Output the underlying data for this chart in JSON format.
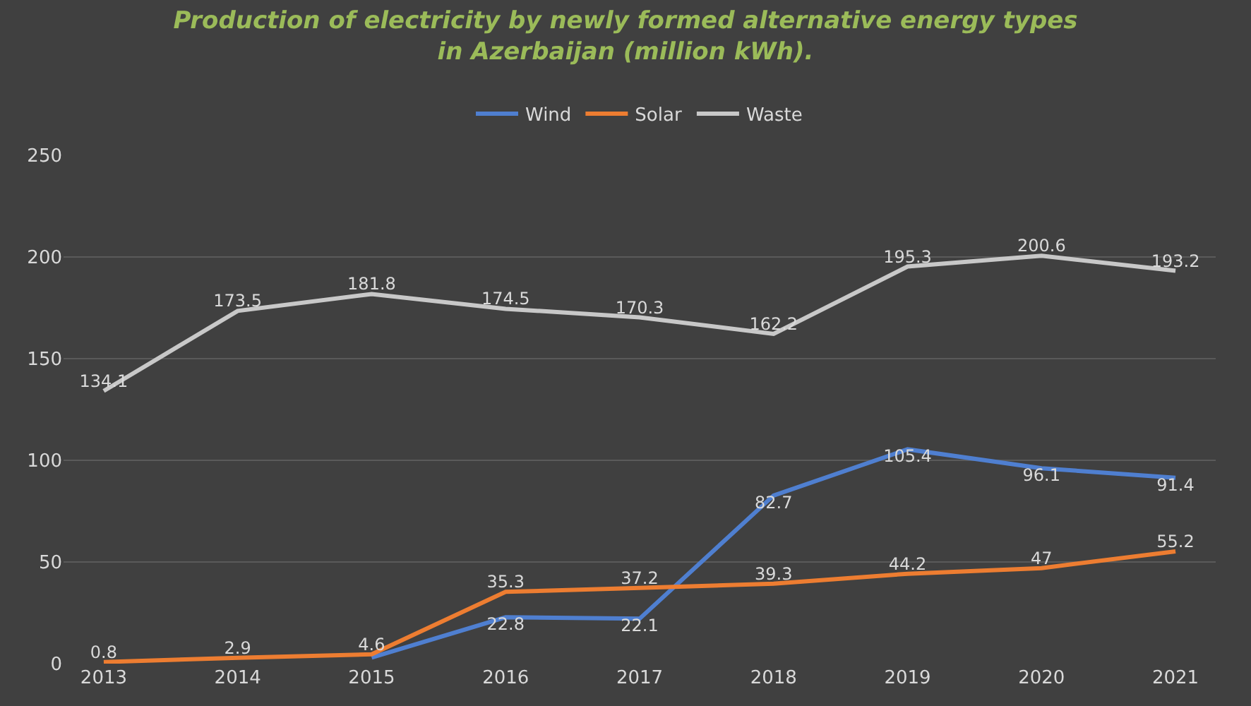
{
  "chart_data": {
    "type": "line",
    "title": "Production of electricity by newly formed alternative energy types\nin Azerbaijan (million kWh).",
    "categories": [
      "2013",
      "2014",
      "2015",
      "2016",
      "2017",
      "2018",
      "2019",
      "2020",
      "2021"
    ],
    "series": [
      {
        "name": "Wind",
        "color": "#4f7fd0",
        "values": [
          null,
          null,
          3,
          22.8,
          22.1,
          82.7,
          105.4,
          96.1,
          91.4
        ],
        "value_labels": [
          null,
          null,
          null,
          "22.8",
          "22.1",
          "82.7",
          "105.4",
          "96.1",
          "91.4"
        ]
      },
      {
        "name": "Solar",
        "color": "#ed7d31",
        "values": [
          0.8,
          2.9,
          4.6,
          35.3,
          37.2,
          39.3,
          44.2,
          47,
          55.2
        ],
        "value_labels": [
          "0.8",
          "2.9",
          "4.6",
          "35.3",
          "37.2",
          "39.3",
          "44.2",
          "47",
          "55.2"
        ]
      },
      {
        "name": "Waste",
        "color": "#c8c8c8",
        "values": [
          134.1,
          173.5,
          181.8,
          174.5,
          170.3,
          162.2,
          195.3,
          200.6,
          193.2
        ],
        "value_labels": [
          "134.1",
          "173.5",
          "181.8",
          "174.5",
          "170.3",
          "162.2",
          "195.3",
          "200.6",
          "193.2"
        ]
      }
    ],
    "ylim": [
      0,
      250
    ],
    "yticks": [
      0,
      50,
      100,
      150,
      200,
      250
    ],
    "grid": "y",
    "legend": "top",
    "marker": "none",
    "line_style": "solid"
  }
}
